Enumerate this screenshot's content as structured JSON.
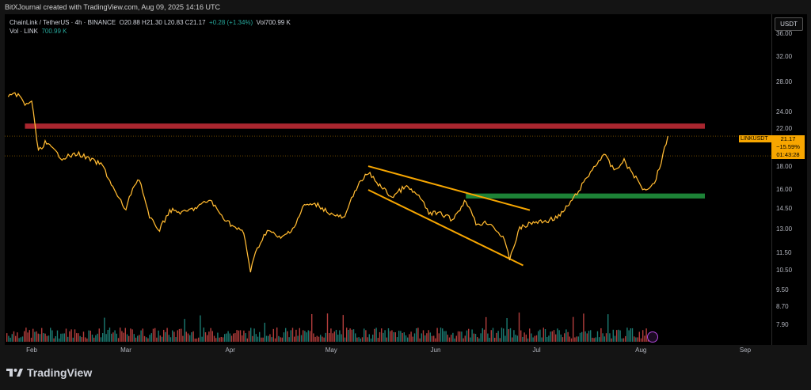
{
  "header": {
    "credit": "BitXJournal created with TradingView.com, Aug 09, 2025 14:16 UTC"
  },
  "legend": {
    "symbol": "ChainLink / TetherUS · 4h · BINANCE",
    "ohlc": "O20.88  H21.30  L20.83  C21.17",
    "change": "+0.28 (+1.34%)",
    "vol_label": "Vol700.99 K",
    "vol_line_label": "Vol · LINK",
    "vol_line_value": "700.99 K"
  },
  "currency": "USDT",
  "price_label": {
    "symbol": "LINKUSDT",
    "price": "21.17",
    "pct": "−15.59%",
    "countdown": "01:43:28"
  },
  "footer": {
    "brand": "TradingView"
  },
  "colors": {
    "candle": "#f7a600",
    "resistance": "#b22831",
    "support": "#1f8a3a",
    "wedge": "#f7a600",
    "vol_up": "#26a69a",
    "vol_down": "#ef5350"
  },
  "chart_data": {
    "type": "line",
    "symbol": "LINKUSDT",
    "timeframe": "4h",
    "y_axis": {
      "scale": "log",
      "ticks": [
        "36.00",
        "32.00",
        "28.00",
        "24.00",
        "22.00",
        "18.00",
        "16.00",
        "14.50",
        "13.00",
        "11.50",
        "10.50",
        "9.50",
        "8.70",
        "7.90"
      ]
    },
    "x_axis": {
      "ticks": [
        "Feb",
        "Mar",
        "Apr",
        "May",
        "Jun",
        "Jul",
        "Aug",
        "Sep"
      ]
    },
    "ylim": [
      7.2,
      40
    ],
    "price_path": [
      {
        "t": "2025-01-25",
        "p": 25.9
      },
      {
        "t": "2025-01-28",
        "p": 26.4
      },
      {
        "t": "2025-01-30",
        "p": 24.8
      },
      {
        "t": "2025-02-01",
        "p": 25.5
      },
      {
        "t": "2025-02-03",
        "p": 19.5
      },
      {
        "t": "2025-02-05",
        "p": 20.5
      },
      {
        "t": "2025-02-10",
        "p": 18.9
      },
      {
        "t": "2025-02-15",
        "p": 19.3
      },
      {
        "t": "2025-02-18",
        "p": 18.8
      },
      {
        "t": "2025-02-22",
        "p": 18.2
      },
      {
        "t": "2025-02-26",
        "p": 15.7
      },
      {
        "t": "2025-03-01",
        "p": 14.4
      },
      {
        "t": "2025-03-03",
        "p": 16.2
      },
      {
        "t": "2025-03-05",
        "p": 17.0
      },
      {
        "t": "2025-03-08",
        "p": 13.8
      },
      {
        "t": "2025-03-11",
        "p": 13.0
      },
      {
        "t": "2025-03-14",
        "p": 14.4
      },
      {
        "t": "2025-03-18",
        "p": 14.2
      },
      {
        "t": "2025-03-22",
        "p": 14.6
      },
      {
        "t": "2025-03-26",
        "p": 15.2
      },
      {
        "t": "2025-03-29",
        "p": 14.1
      },
      {
        "t": "2025-04-02",
        "p": 13.2
      },
      {
        "t": "2025-04-05",
        "p": 12.8
      },
      {
        "t": "2025-04-07",
        "p": 10.5
      },
      {
        "t": "2025-04-09",
        "p": 11.8
      },
      {
        "t": "2025-04-12",
        "p": 13.0
      },
      {
        "t": "2025-04-16",
        "p": 12.4
      },
      {
        "t": "2025-04-20",
        "p": 13.2
      },
      {
        "t": "2025-04-23",
        "p": 14.8
      },
      {
        "t": "2025-04-27",
        "p": 14.8
      },
      {
        "t": "2025-05-01",
        "p": 14.1
      },
      {
        "t": "2025-05-05",
        "p": 13.8
      },
      {
        "t": "2025-05-08",
        "p": 16.0
      },
      {
        "t": "2025-05-12",
        "p": 17.5
      },
      {
        "t": "2025-05-15",
        "p": 16.5
      },
      {
        "t": "2025-05-19",
        "p": 15.4
      },
      {
        "t": "2025-05-23",
        "p": 16.3
      },
      {
        "t": "2025-05-27",
        "p": 15.5
      },
      {
        "t": "2025-05-30",
        "p": 14.2
      },
      {
        "t": "2025-06-03",
        "p": 14.1
      },
      {
        "t": "2025-06-06",
        "p": 13.7
      },
      {
        "t": "2025-06-10",
        "p": 15.2
      },
      {
        "t": "2025-06-13",
        "p": 13.4
      },
      {
        "t": "2025-06-17",
        "p": 13.5
      },
      {
        "t": "2025-06-21",
        "p": 12.5
      },
      {
        "t": "2025-06-23",
        "p": 11.2
      },
      {
        "t": "2025-06-26",
        "p": 13.1
      },
      {
        "t": "2025-06-30",
        "p": 13.5
      },
      {
        "t": "2025-07-04",
        "p": 13.6
      },
      {
        "t": "2025-07-08",
        "p": 14.0
      },
      {
        "t": "2025-07-12",
        "p": 15.3
      },
      {
        "t": "2025-07-15",
        "p": 16.6
      },
      {
        "t": "2025-07-18",
        "p": 18.0
      },
      {
        "t": "2025-07-21",
        "p": 19.3
      },
      {
        "t": "2025-07-24",
        "p": 17.7
      },
      {
        "t": "2025-07-27",
        "p": 18.6
      },
      {
        "t": "2025-07-30",
        "p": 17.2
      },
      {
        "t": "2025-08-02",
        "p": 16.0
      },
      {
        "t": "2025-08-05",
        "p": 16.6
      },
      {
        "t": "2025-08-07",
        "p": 18.5
      },
      {
        "t": "2025-08-09",
        "p": 21.17
      }
    ],
    "annotations": [
      {
        "type": "resistance_zone",
        "y_top": 22.6,
        "y_bottom": 22.0,
        "x_start": "2025-01-30",
        "x_end": "2025-08-20"
      },
      {
        "type": "support_zone",
        "y_top": 15.7,
        "y_bottom": 15.3,
        "x_start": "2025-06-10",
        "x_end": "2025-08-20"
      },
      {
        "type": "wedge_upper",
        "from": {
          "t": "2025-05-12",
          "p": 18.1
        },
        "to": {
          "t": "2025-06-29",
          "p": 14.4
        }
      },
      {
        "type": "wedge_lower",
        "from": {
          "t": "2025-05-12",
          "p": 16.0
        },
        "to": {
          "t": "2025-06-27",
          "p": 10.8
        }
      },
      {
        "type": "last_price_line",
        "y": 21.17
      },
      {
        "type": "reference_line",
        "y": 19.1
      }
    ],
    "grid": false
  }
}
